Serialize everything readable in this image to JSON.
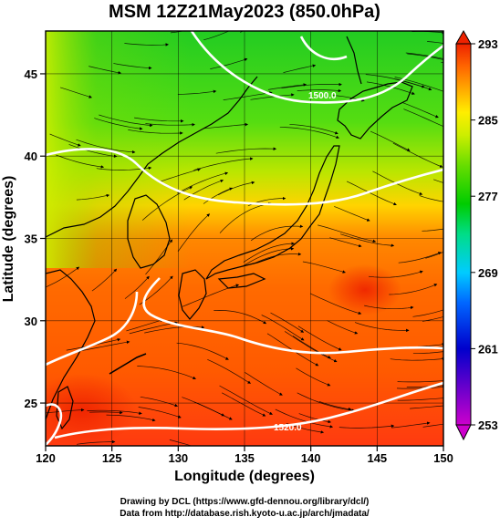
{
  "title": "MSM 12Z21May2023 (850.0hPa)",
  "axes": {
    "xlabel": "Longitude (degrees)",
    "ylabel": "Latitude (degrees)",
    "xticks": [
      "120",
      "125",
      "130",
      "135",
      "140",
      "145",
      "150"
    ],
    "yticks": [
      "25",
      "30",
      "35",
      "40",
      "45"
    ],
    "xlim": [
      120,
      150
    ],
    "ylim": [
      22.4,
      47.6
    ]
  },
  "colorbar": {
    "ticks": [
      "253",
      "261",
      "269",
      "277",
      "285",
      "293"
    ],
    "range": [
      253,
      293
    ],
    "colors": [
      "#cc00cc",
      "#0000cc",
      "#0066ff",
      "#00ccff",
      "#00dd88",
      "#00cc00",
      "#66dd00",
      "#ccee00",
      "#ffee00",
      "#ffaa00",
      "#ff6600",
      "#ee2200"
    ]
  },
  "contours": {
    "labels": [
      "1500.0",
      "1520.0"
    ]
  },
  "credits": {
    "line1": "Drawing by DCL (https://www.gfd-dennou.org/library/dcl/)",
    "line2": "Data from http://database.rish.kyoto-u.ac.jp/arch/jmadata/"
  },
  "colors": {
    "land_outline": "#000000",
    "contour": "#ffffff",
    "grid": "#000000"
  }
}
